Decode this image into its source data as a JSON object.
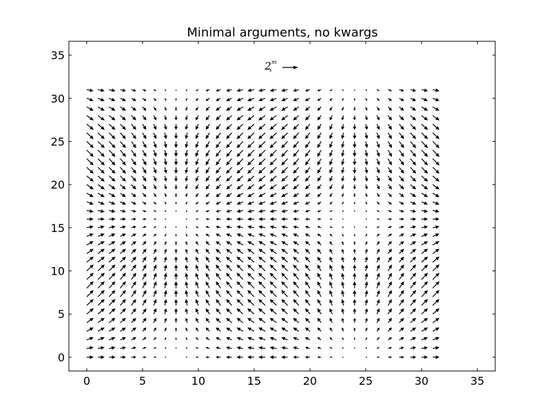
{
  "chart_data": {
    "type": "quiver",
    "title": "Minimal arguments, no kwargs",
    "xlabel": "",
    "ylabel": "",
    "xlim": [
      -1.6,
      36.6
    ],
    "ylim": [
      -1.6,
      36.6
    ],
    "xticks": [
      0,
      5,
      10,
      15,
      20,
      25,
      30,
      35
    ],
    "yticks": [
      0,
      5,
      10,
      15,
      20,
      25,
      30,
      35
    ],
    "grid": false,
    "vector_field": {
      "x_range": [
        0,
        31
      ],
      "y_range": [
        0,
        31
      ],
      "step": 1,
      "u": "cos(x * pi / 16)",
      "v": "sin(y * pi / 16)"
    },
    "quiverkey": {
      "base": "2",
      "superscript": "m",
      "subscript": "s",
      "magnitude": 2,
      "position": "top-center"
    },
    "arrow_color": "#000000"
  }
}
